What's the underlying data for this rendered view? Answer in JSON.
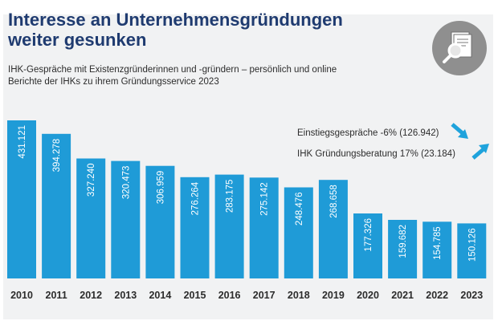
{
  "header": {
    "title_line1": "Interesse an Unternehmensgründungen",
    "title_line2": "weiter gesunken",
    "subtitle_line1": "IHK-Gespräche mit Existenzgründerinnen und -gründern – persönlich und online",
    "subtitle_line2": "Berichte der IHKs zu ihrem Gründungsservice 2023"
  },
  "icon": {
    "name": "document-magnifier-icon"
  },
  "legend": {
    "items": [
      {
        "label": "Einstiegsgespräche -6% (126.942)",
        "icon": "arrow-down-right-icon"
      },
      {
        "label": "IHK Gründungsberatung 17% (23.184)",
        "icon": "arrow-up-right-icon"
      }
    ]
  },
  "colors": {
    "bar": "#1f9bd7",
    "accent": "#1fa3dc",
    "title": "#1f3b70"
  },
  "chart_data": {
    "type": "bar",
    "categories": [
      "2010",
      "2011",
      "2012",
      "2013",
      "2014",
      "2015",
      "2016",
      "2017",
      "2018",
      "2019",
      "2020",
      "2021",
      "2022",
      "2023"
    ],
    "values": [
      431121,
      394278,
      327240,
      320473,
      306959,
      276264,
      283175,
      275142,
      248476,
      268658,
      177326,
      159682,
      154785,
      150126
    ],
    "value_labels": [
      "431.121",
      "394.278",
      "327.240",
      "320.473",
      "306.959",
      "276.264",
      "283.175",
      "275.142",
      "248.476",
      "268.658",
      "177.326",
      "159.682",
      "154.785",
      "150.126"
    ],
    "title": "Interesse an Unternehmensgründungen weiter gesunken",
    "xlabel": "",
    "ylabel": "",
    "ylim": [
      0,
      431121
    ]
  }
}
